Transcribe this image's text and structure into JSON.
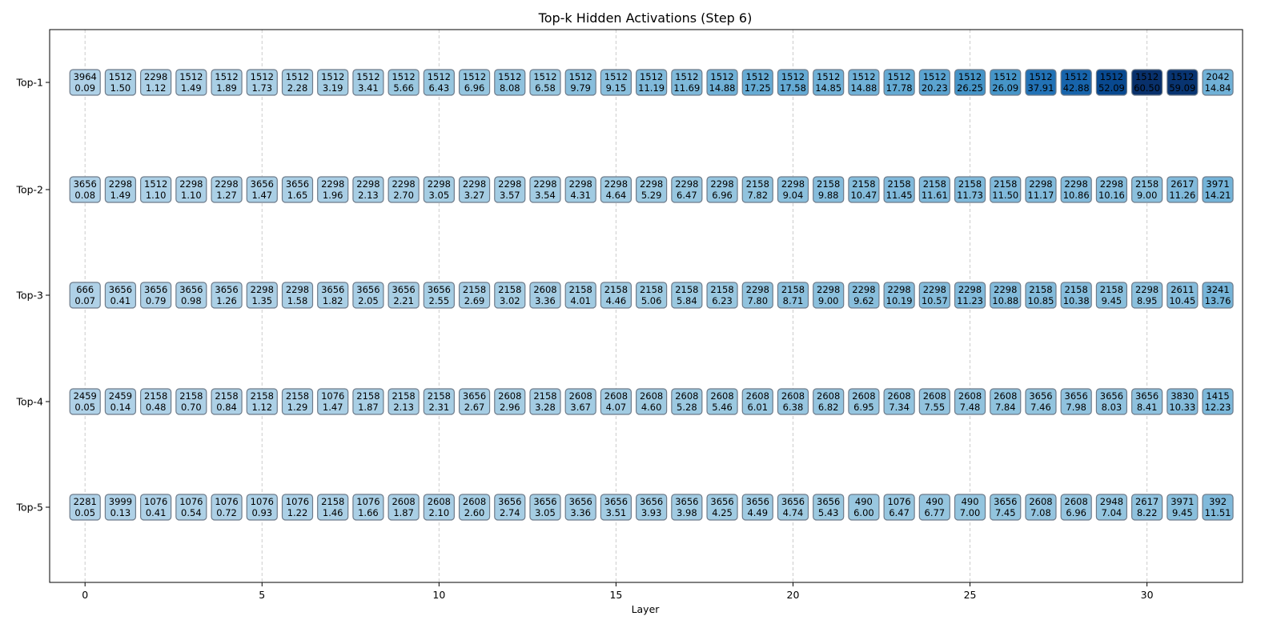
{
  "chart_data": {
    "type": "heatmap",
    "title": "Top-k Hidden Activations (Step 6)",
    "xlabel": "Layer",
    "ylabel": "",
    "xlim": [
      -1,
      32.7
    ],
    "x_ticks": [
      0,
      5,
      10,
      15,
      20,
      25,
      30
    ],
    "grid": "vertical dashed at x ticks",
    "colormap": "Blues",
    "rows": [
      "Top-1",
      "Top-2",
      "Top-3",
      "Top-4",
      "Top-5"
    ],
    "layers": [
      0,
      1,
      2,
      3,
      4,
      5,
      6,
      7,
      8,
      9,
      10,
      11,
      12,
      13,
      14,
      15,
      16,
      17,
      18,
      19,
      20,
      21,
      22,
      23,
      24,
      25,
      26,
      27,
      28,
      29,
      30,
      31,
      32
    ],
    "ids": [
      [
        "3964",
        "1512",
        "2298",
        "1512",
        "1512",
        "1512",
        "1512",
        "1512",
        "1512",
        "1512",
        "1512",
        "1512",
        "1512",
        "1512",
        "1512",
        "1512",
        "1512",
        "1512",
        "1512",
        "1512",
        "1512",
        "1512",
        "1512",
        "1512",
        "1512",
        "1512",
        "1512",
        "1512",
        "1512",
        "1512",
        "1512",
        "1512",
        "2042"
      ],
      [
        "3656",
        "2298",
        "1512",
        "2298",
        "2298",
        "3656",
        "3656",
        "2298",
        "2298",
        "2298",
        "2298",
        "2298",
        "2298",
        "2298",
        "2298",
        "2298",
        "2298",
        "2298",
        "2298",
        "2158",
        "2298",
        "2158",
        "2158",
        "2158",
        "2158",
        "2158",
        "2158",
        "2298",
        "2298",
        "2298",
        "2158",
        "2617",
        "3971"
      ],
      [
        "666",
        "3656",
        "3656",
        "3656",
        "3656",
        "2298",
        "2298",
        "3656",
        "3656",
        "3656",
        "3656",
        "2158",
        "2158",
        "2608",
        "2158",
        "2158",
        "2158",
        "2158",
        "2158",
        "2298",
        "2158",
        "2298",
        "2298",
        "2298",
        "2298",
        "2298",
        "2298",
        "2158",
        "2158",
        "2158",
        "2298",
        "2611",
        "3241"
      ],
      [
        "2459",
        "2459",
        "2158",
        "2158",
        "2158",
        "2158",
        "2158",
        "1076",
        "2158",
        "2158",
        "2158",
        "3656",
        "2608",
        "2158",
        "2608",
        "2608",
        "2608",
        "2608",
        "2608",
        "2608",
        "2608",
        "2608",
        "2608",
        "2608",
        "2608",
        "2608",
        "2608",
        "3656",
        "3656",
        "3656",
        "3656",
        "3830",
        "1415"
      ],
      [
        "2281",
        "3999",
        "1076",
        "1076",
        "1076",
        "1076",
        "1076",
        "2158",
        "1076",
        "2608",
        "2608",
        "2608",
        "3656",
        "3656",
        "3656",
        "3656",
        "3656",
        "3656",
        "3656",
        "3656",
        "3656",
        "3656",
        "490",
        "1076",
        "490",
        "490",
        "3656",
        "2608",
        "2608",
        "2948",
        "2617",
        "3971",
        "392"
      ]
    ],
    "values": [
      [
        "0.09",
        "1.50",
        "1.12",
        "1.49",
        "1.89",
        "1.73",
        "2.28",
        "3.19",
        "3.41",
        "5.66",
        "6.43",
        "6.96",
        "8.08",
        "6.58",
        "9.79",
        "9.15",
        "11.19",
        "11.69",
        "14.88",
        "17.25",
        "17.58",
        "14.85",
        "14.88",
        "17.78",
        "20.23",
        "26.25",
        "26.09",
        "37.91",
        "42.88",
        "52.09",
        "60.50",
        "59.09",
        "14.84"
      ],
      [
        "0.08",
        "1.49",
        "1.10",
        "1.10",
        "1.27",
        "1.47",
        "1.65",
        "1.96",
        "2.13",
        "2.70",
        "3.05",
        "3.27",
        "3.57",
        "3.54",
        "4.31",
        "4.64",
        "5.29",
        "6.47",
        "6.96",
        "7.82",
        "9.04",
        "9.88",
        "10.47",
        "11.45",
        "11.61",
        "11.73",
        "11.50",
        "11.17",
        "10.86",
        "10.16",
        "9.00",
        "11.26",
        "14.21"
      ],
      [
        "0.07",
        "0.41",
        "0.79",
        "0.98",
        "1.26",
        "1.35",
        "1.58",
        "1.82",
        "2.05",
        "2.21",
        "2.55",
        "2.69",
        "3.02",
        "3.36",
        "4.01",
        "4.46",
        "5.06",
        "5.84",
        "6.23",
        "7.80",
        "8.71",
        "9.00",
        "9.62",
        "10.19",
        "10.57",
        "11.23",
        "10.88",
        "10.85",
        "10.38",
        "9.45",
        "8.95",
        "10.45",
        "13.76"
      ],
      [
        "0.05",
        "0.14",
        "0.48",
        "0.70",
        "0.84",
        "1.12",
        "1.29",
        "1.47",
        "1.87",
        "2.13",
        "2.31",
        "2.67",
        "2.96",
        "3.28",
        "3.67",
        "4.07",
        "4.60",
        "5.28",
        "5.46",
        "6.01",
        "6.38",
        "6.82",
        "6.95",
        "7.34",
        "7.55",
        "7.48",
        "7.84",
        "7.46",
        "7.98",
        "8.03",
        "8.41",
        "10.33",
        "12.23"
      ],
      [
        "0.05",
        "0.13",
        "0.41",
        "0.54",
        "0.72",
        "0.93",
        "1.22",
        "1.46",
        "1.66",
        "1.87",
        "2.10",
        "2.60",
        "2.74",
        "3.05",
        "3.36",
        "3.51",
        "3.93",
        "3.98",
        "4.25",
        "4.49",
        "4.74",
        "5.43",
        "6.00",
        "6.47",
        "6.77",
        "7.00",
        "7.45",
        "7.08",
        "6.96",
        "7.04",
        "8.22",
        "9.45",
        "11.51"
      ]
    ]
  }
}
